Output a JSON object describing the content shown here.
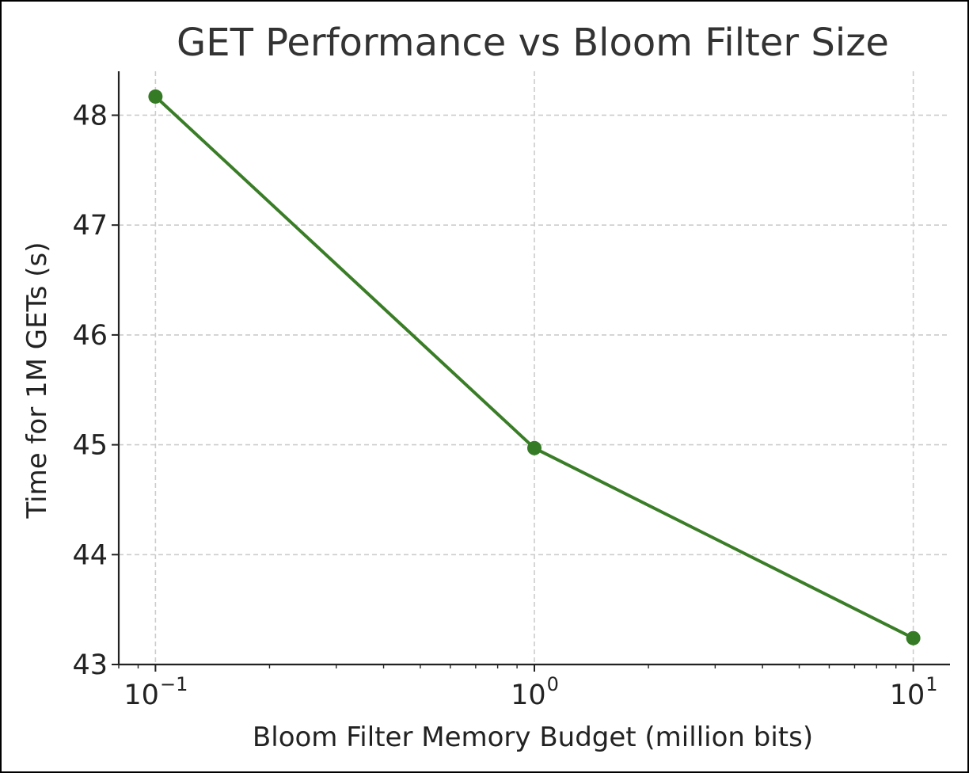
{
  "colors": {
    "line": "#3a7d27",
    "marker": "#357a25",
    "grid": "#cccccc",
    "axis": "#222222",
    "background": "#ffffff"
  },
  "chart_data": {
    "type": "line",
    "title": "GET Performance vs Bloom Filter Size",
    "xlabel": "Bloom Filter Memory Budget (million bits)",
    "ylabel": "Time for 1M GETs (s)",
    "xscale": "log",
    "xlim": [
      0.08,
      12.5
    ],
    "ylim": [
      43,
      48.4
    ],
    "grid": true,
    "legend": "none",
    "x_ticks": [
      {
        "value": 0.1,
        "base": "10",
        "exp": "−1"
      },
      {
        "value": 1,
        "base": "10",
        "exp": "0"
      },
      {
        "value": 10,
        "base": "10",
        "exp": "1"
      }
    ],
    "y_ticks": [
      43,
      44,
      45,
      46,
      47,
      48
    ],
    "series": [
      {
        "x": [
          0.1,
          1,
          10
        ],
        "y": [
          48.17,
          44.97,
          43.24
        ]
      }
    ]
  }
}
